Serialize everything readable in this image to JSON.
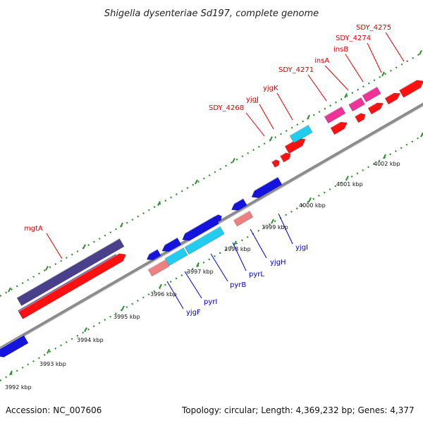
{
  "title": "Shigella dysenteriae Sd197, complete genome",
  "footer": {
    "accession": "Accession: NC_007606",
    "summary": "Topology: circular; Length: 4,369,232 bp; Genes: 4,377"
  },
  "colors": {
    "backbone": "#8c8c8c",
    "dots": "#2f8f2f",
    "red": "#ff1010",
    "blue": "#1414dc",
    "cyan": "#22ccee",
    "pink": "#ee3399",
    "salmon": "#ee8080",
    "navy": "#4a3f8a",
    "label_top": "#e00000",
    "label_bottom": "#0000dd"
  },
  "scale_labels": [
    "3992 kbp",
    "3993 kbp",
    "3994 kbp",
    "3995 kbp",
    "3996 kbp",
    "3997 kbp",
    "3998 kbp",
    "3999 kbp",
    "4000 kbp",
    "4001 kbp",
    "4002 kbp"
  ],
  "top_labels": [
    {
      "text": "mgtA"
    },
    {
      "text": "SDY_4268"
    },
    {
      "text": "yjgJ"
    },
    {
      "text": "yjgK"
    },
    {
      "text": "SDY_4271"
    },
    {
      "text": "insA"
    },
    {
      "text": "insB"
    },
    {
      "text": "SDY_4274"
    },
    {
      "text": "SDY_4275"
    }
  ],
  "bottom_labels": [
    {
      "text": "yjgF"
    },
    {
      "text": "pyrI"
    },
    {
      "text": "pyrB"
    },
    {
      "text": "pyrL"
    },
    {
      "text": "yjgH"
    },
    {
      "text": "yjgI"
    }
  ]
}
